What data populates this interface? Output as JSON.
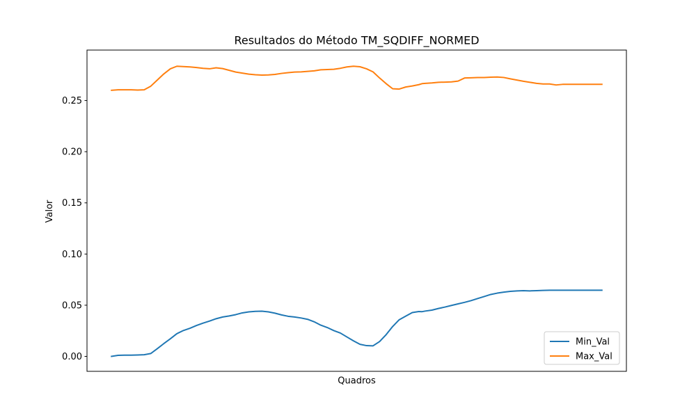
{
  "chart_data": {
    "type": "line",
    "title": "Resultados do Método TM_SQDIFF_NORMED",
    "xlabel": "Quadros",
    "ylabel": "Valor",
    "xlim": [
      -4.75,
      99.75
    ],
    "ylim": [
      -0.0146,
      0.2993
    ],
    "x_ticks_visible": false,
    "yticks": [
      0.0,
      0.05,
      0.1,
      0.15,
      0.2,
      0.25
    ],
    "ytick_labels": [
      "0.00",
      "0.05",
      "0.10",
      "0.15",
      "0.20",
      "0.25"
    ],
    "grid": false,
    "legend_position": "lower-right",
    "x": [
      0,
      2,
      4,
      6,
      8,
      10,
      12,
      14,
      16,
      18,
      20,
      22,
      24,
      26,
      28,
      30,
      32,
      34,
      36,
      38,
      40,
      42,
      44,
      46,
      48,
      50,
      52,
      54,
      56,
      58,
      60,
      62,
      64,
      66,
      68,
      70,
      72,
      74,
      76,
      78,
      80,
      82,
      84,
      86,
      88,
      90,
      92,
      94,
      95
    ],
    "series": [
      {
        "name": "Min_Val",
        "color": "#1f77b4",
        "values": [
          0.0,
          0.001,
          0.0012,
          0.0012,
          0.0014,
          0.0016,
          0.0028,
          0.0075,
          0.0125,
          0.0172,
          0.0222,
          0.0253,
          0.0275,
          0.0302,
          0.0325,
          0.0345,
          0.0368,
          0.0385,
          0.0395,
          0.0408,
          0.0425,
          0.0435,
          0.044,
          0.0442,
          0.0435,
          0.0422,
          0.0405,
          0.0392,
          0.0385,
          0.0375,
          0.0362,
          0.0338,
          0.0305,
          0.0282,
          0.0252,
          0.0228,
          0.019,
          0.0152,
          0.0118,
          0.0105,
          0.0103,
          0.0145,
          0.0212,
          0.0292,
          0.0358,
          0.0393,
          0.0428,
          0.0438,
          0.0437
        ]
      },
      {
        "name": "Max_Val",
        "color": "#ff7f0e",
        "values": [
          0.26,
          0.2605,
          0.2605,
          0.2605,
          0.2602,
          0.2605,
          0.264,
          0.27,
          0.276,
          0.281,
          0.2835,
          0.2832,
          0.2828,
          0.2822,
          0.2815,
          0.281,
          0.282,
          0.2812,
          0.2795,
          0.2778,
          0.2768,
          0.2758,
          0.2752,
          0.2748,
          0.275,
          0.2755,
          0.2765,
          0.2772,
          0.2778,
          0.278,
          0.2785,
          0.279,
          0.28,
          0.2803,
          0.2805,
          0.2815,
          0.2828,
          0.2835,
          0.283,
          0.281,
          0.278,
          0.272,
          0.2665,
          0.2615,
          0.2612,
          0.2632,
          0.2642,
          0.2655,
          0.2665
        ]
      }
    ],
    "series_tail": {
      "x": [
        96,
        98,
        100,
        102,
        104,
        106,
        108,
        110,
        112,
        114,
        116,
        118,
        120,
        122,
        124,
        126,
        128,
        130,
        132,
        134,
        136,
        138,
        140,
        142,
        144,
        146,
        148,
        150
      ],
      "Min_Val": [
        0.0443,
        0.0452,
        0.0468,
        0.0482,
        0.0498,
        0.0513,
        0.0528,
        0.0545,
        0.0565,
        0.0585,
        0.0605,
        0.0618,
        0.0628,
        0.0635,
        0.064,
        0.0642,
        0.064,
        0.0642,
        0.0645,
        0.0646,
        0.0646,
        0.0646,
        0.0646,
        0.0646,
        0.0646,
        0.0646,
        0.0646,
        0.0646
      ],
      "Max_Val": [
        0.2668,
        0.2672,
        0.2678,
        0.268,
        0.2682,
        0.269,
        0.272,
        0.2722,
        0.2725,
        0.2725,
        0.2728,
        0.273,
        0.2725,
        0.2712,
        0.27,
        0.2688,
        0.2678,
        0.2668,
        0.2662,
        0.2662,
        0.2652,
        0.2658,
        0.2658,
        0.2658,
        0.2658,
        0.2658,
        0.2658,
        0.2658
      ]
    }
  }
}
